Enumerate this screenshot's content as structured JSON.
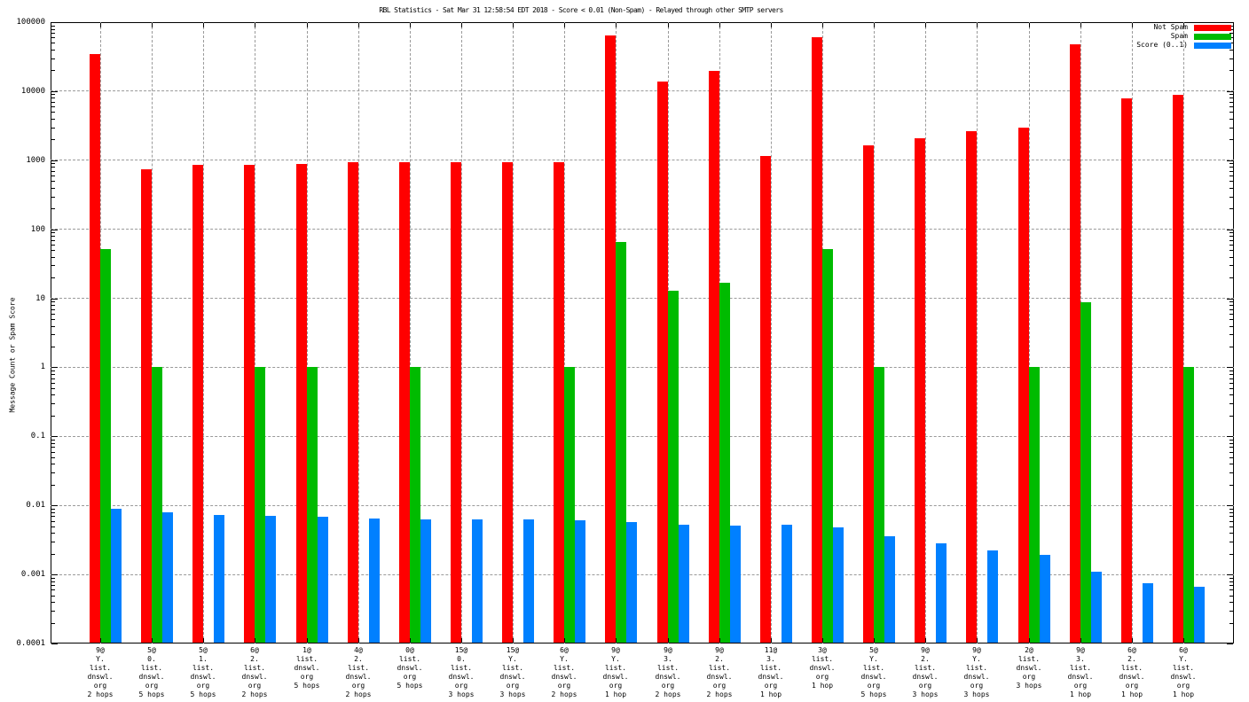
{
  "title": "RBL Statistics - Sat Mar 31 12:58:54 EDT 2018 - Score < 0.01 (Non-Spam) - Relayed through other SMTP servers",
  "y_axis": {
    "label": "Message Count or Spam Score",
    "ticks": [
      "100000",
      "10000",
      "1000",
      "100",
      "10",
      "1",
      "0.1",
      "0.01",
      "0.001",
      "0.0001"
    ]
  },
  "chart_data": {
    "type": "bar",
    "log_scale": true,
    "ylim": [
      0.0001,
      100000
    ],
    "ylabel": "Message Count or Spam Score",
    "grid": true,
    "legend_position": "top-right",
    "series": [
      {
        "name": "Not Spam",
        "color": "#ff0000"
      },
      {
        "name": "Spam",
        "color": "#00bb00"
      },
      {
        "name": "Score (0..1)",
        "color": "#0080ff"
      }
    ],
    "groups": [
      {
        "label_lines": [
          "9@",
          "Y.",
          "list.",
          "dnswl.",
          "org",
          "2 hops"
        ],
        "values": [
          35000,
          52,
          0.009
        ]
      },
      {
        "label_lines": [
          "5@",
          "0.",
          "list.",
          "dnswl.",
          "org",
          "5 hops"
        ],
        "values": [
          730,
          1,
          0.008
        ]
      },
      {
        "label_lines": [
          "5@",
          "1.",
          "list.",
          "dnswl.",
          "org",
          "5 hops"
        ],
        "values": [
          850,
          null,
          0.0072
        ]
      },
      {
        "label_lines": [
          "6@",
          "2.",
          "list.",
          "dnswl.",
          "org",
          "2 hops"
        ],
        "values": [
          860,
          1,
          0.007
        ]
      },
      {
        "label_lines": [
          "1@",
          "list.",
          "dnswl.",
          "org",
          "5 hops"
        ],
        "values": [
          880,
          1,
          0.0068
        ]
      },
      {
        "label_lines": [
          "4@",
          "2.",
          "list.",
          "dnswl.",
          "org",
          "2 hops"
        ],
        "values": [
          930,
          null,
          0.0064
        ]
      },
      {
        "label_lines": [
          "0@",
          "list.",
          "dnswl.",
          "org",
          "5 hops"
        ],
        "values": [
          935,
          1,
          0.0063
        ]
      },
      {
        "label_lines": [
          "15@",
          "0.",
          "list.",
          "dnswl.",
          "org",
          "3 hops"
        ],
        "values": [
          945,
          null,
          0.0062
        ]
      },
      {
        "label_lines": [
          "15@",
          "Y.",
          "list.",
          "dnswl.",
          "org",
          "3 hops"
        ],
        "values": [
          945,
          null,
          0.0062
        ]
      },
      {
        "label_lines": [
          "6@",
          "Y.",
          "list.",
          "dnswl.",
          "org",
          "2 hops"
        ],
        "values": [
          930,
          1,
          0.0061
        ]
      },
      {
        "label_lines": [
          "9@",
          "Y.",
          "list.",
          "dnswl.",
          "org",
          "1 hop"
        ],
        "values": [
          65000,
          66,
          0.0057
        ]
      },
      {
        "label_lines": [
          "9@",
          "3.",
          "list.",
          "dnswl.",
          "org",
          "2 hops"
        ],
        "values": [
          14000,
          13,
          0.0053
        ]
      },
      {
        "label_lines": [
          "9@",
          "2.",
          "list.",
          "dnswl.",
          "org",
          "2 hops"
        ],
        "values": [
          19500,
          17,
          0.0051
        ]
      },
      {
        "label_lines": [
          "11@",
          "3.",
          "list.",
          "dnswl.",
          "org",
          "1 hop"
        ],
        "values": [
          1150,
          null,
          0.0052
        ]
      },
      {
        "label_lines": [
          "3@",
          "list.",
          "dnswl.",
          "org",
          "1 hop"
        ],
        "values": [
          60000,
          51,
          0.0048
        ]
      },
      {
        "label_lines": [
          "5@",
          "Y.",
          "list.",
          "dnswl.",
          "org",
          "5 hops"
        ],
        "values": [
          1650,
          1,
          0.0036
        ]
      },
      {
        "label_lines": [
          "9@",
          "2.",
          "list.",
          "dnswl.",
          "org",
          "3 hops"
        ],
        "values": [
          2100,
          null,
          0.0028
        ]
      },
      {
        "label_lines": [
          "9@",
          "Y.",
          "list.",
          "dnswl.",
          "org",
          "3 hops"
        ],
        "values": [
          2600,
          null,
          0.0022
        ]
      },
      {
        "label_lines": [
          "2@",
          "list.",
          "dnswl.",
          "org",
          "3 hops"
        ],
        "values": [
          3000,
          1,
          0.0019
        ]
      },
      {
        "label_lines": [
          "9@",
          "3.",
          "list.",
          "dnswl.",
          "org",
          "1 hop"
        ],
        "values": [
          48000,
          8.7,
          0.0011
        ]
      },
      {
        "label_lines": [
          "6@",
          "2.",
          "list.",
          "dnswl.",
          "org",
          "1 hop"
        ],
        "values": [
          7800,
          null,
          0.00075
        ]
      },
      {
        "label_lines": [
          "6@",
          "Y.",
          "list.",
          "dnswl.",
          "org",
          "1 hop"
        ],
        "values": [
          8800,
          1,
          0.00066
        ]
      }
    ]
  }
}
